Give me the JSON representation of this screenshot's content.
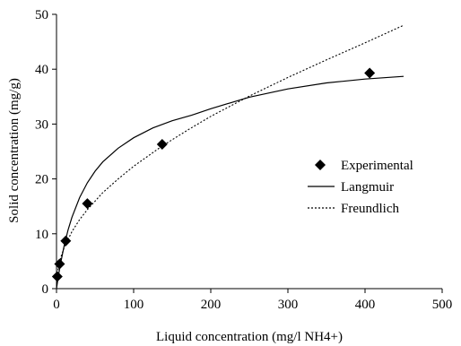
{
  "chart_data": {
    "type": "scatter",
    "title": "",
    "xlabel": "Liquid concentration (mg/l NH4+)",
    "ylabel": "Solid concentration (mg/g)",
    "xlim": [
      0,
      500
    ],
    "ylim": [
      0,
      50
    ],
    "xticks": [
      "0",
      "100",
      "200",
      "300",
      "400",
      "500"
    ],
    "yticks": [
      "0",
      "10",
      "20",
      "30",
      "40",
      "50"
    ],
    "grid": false,
    "legend_position": "right",
    "series": [
      {
        "name": "Experimental",
        "kind": "markers",
        "marker": "diamond",
        "color": "#000000",
        "points": [
          {
            "x": 1,
            "y": 2.2
          },
          {
            "x": 4,
            "y": 4.5
          },
          {
            "x": 12,
            "y": 8.7
          },
          {
            "x": 40,
            "y": 15.5
          },
          {
            "x": 137,
            "y": 26.3
          },
          {
            "x": 406,
            "y": 39.3
          }
        ]
      },
      {
        "name": "Langmuir",
        "kind": "line",
        "style": "solid",
        "color": "#000000",
        "points": [
          {
            "x": 0,
            "y": 0
          },
          {
            "x": 2,
            "y": 1.9
          },
          {
            "x": 5,
            "y": 4.4
          },
          {
            "x": 10,
            "y": 7.9
          },
          {
            "x": 15,
            "y": 10.7
          },
          {
            "x": 20,
            "y": 13.0
          },
          {
            "x": 30,
            "y": 16.6
          },
          {
            "x": 40,
            "y": 19.3
          },
          {
            "x": 50,
            "y": 21.4
          },
          {
            "x": 60,
            "y": 23.1
          },
          {
            "x": 80,
            "y": 25.6
          },
          {
            "x": 100,
            "y": 27.5
          },
          {
            "x": 125,
            "y": 29.3
          },
          {
            "x": 150,
            "y": 30.6
          },
          {
            "x": 175,
            "y": 31.6
          },
          {
            "x": 200,
            "y": 32.8
          },
          {
            "x": 250,
            "y": 34.9
          },
          {
            "x": 300,
            "y": 36.4
          },
          {
            "x": 350,
            "y": 37.5
          },
          {
            "x": 400,
            "y": 38.2
          },
          {
            "x": 450,
            "y": 38.7
          }
        ]
      },
      {
        "name": "Freundlich",
        "kind": "line",
        "style": "dotted",
        "color": "#000000",
        "points": [
          {
            "x": 1,
            "y": 2.7
          },
          {
            "x": 3,
            "y": 4.3
          },
          {
            "x": 6,
            "y": 5.9
          },
          {
            "x": 10,
            "y": 7.5
          },
          {
            "x": 20,
            "y": 10.4
          },
          {
            "x": 30,
            "y": 12.6
          },
          {
            "x": 40,
            "y": 14.4
          },
          {
            "x": 60,
            "y": 17.5
          },
          {
            "x": 80,
            "y": 20.0
          },
          {
            "x": 100,
            "y": 22.3
          },
          {
            "x": 137,
            "y": 26.0
          },
          {
            "x": 170,
            "y": 28.9
          },
          {
            "x": 200,
            "y": 31.4
          },
          {
            "x": 250,
            "y": 35.1
          },
          {
            "x": 300,
            "y": 38.5
          },
          {
            "x": 350,
            "y": 41.7
          },
          {
            "x": 400,
            "y": 44.8
          },
          {
            "x": 450,
            "y": 48.0
          }
        ]
      }
    ]
  }
}
